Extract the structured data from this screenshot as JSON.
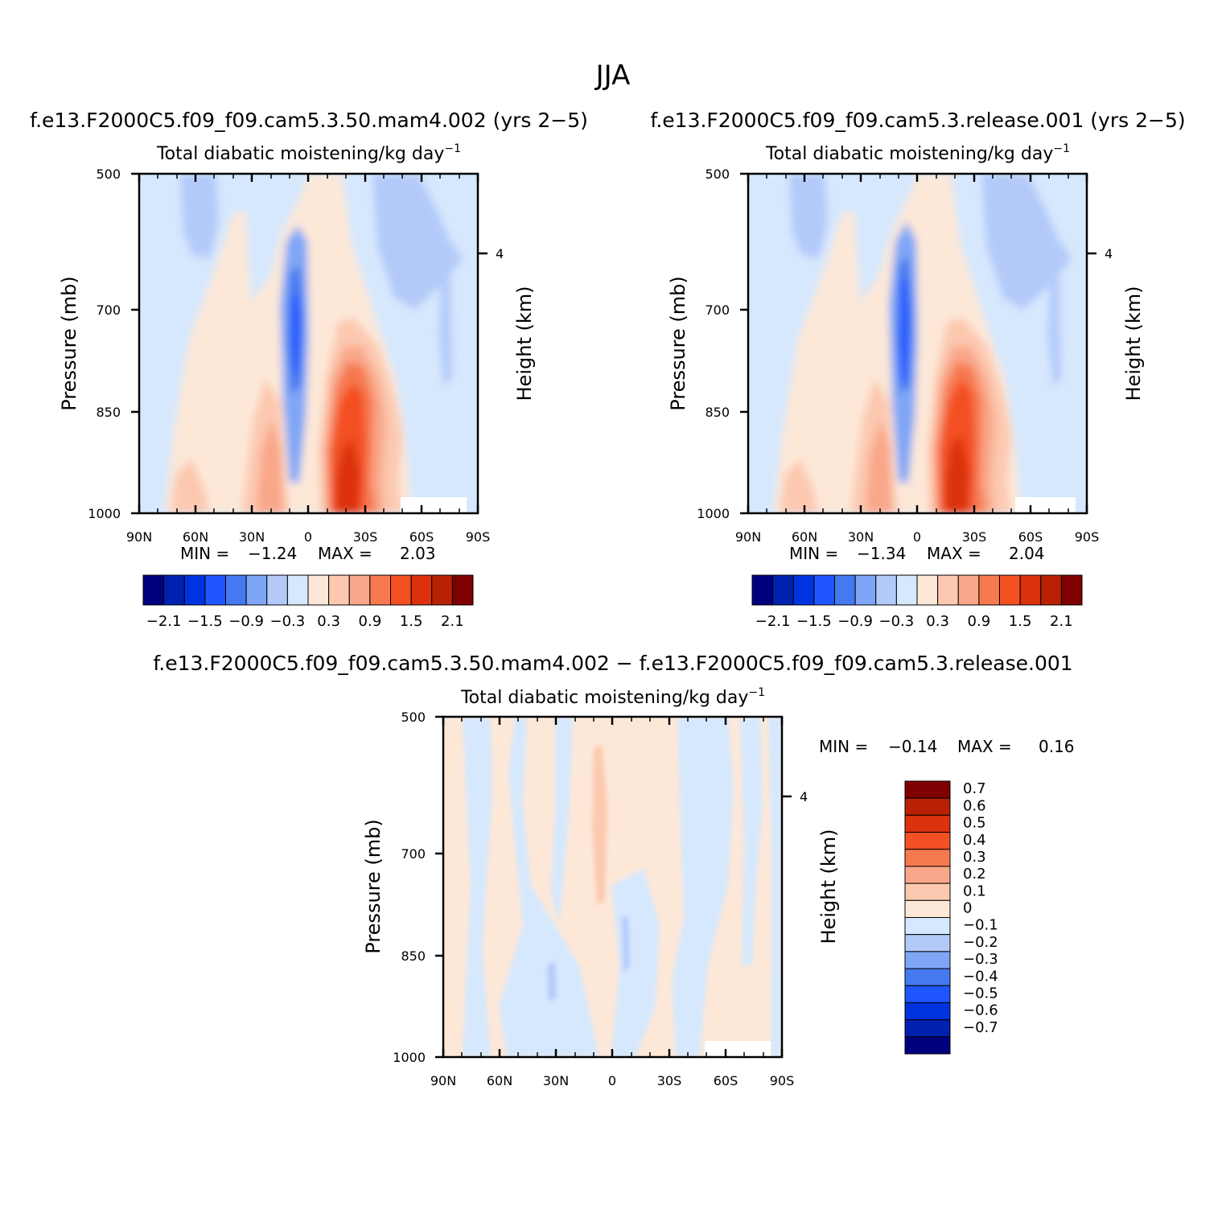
{
  "figure": {
    "title": "JJA",
    "colors": {
      "full_palette": [
        "#00007f",
        "#0021b0",
        "#0033e0",
        "#1e55ff",
        "#4479f0",
        "#7fa6f6",
        "#b3caf9",
        "#d6e8fd",
        "#fde8d8",
        "#fcc9b0",
        "#f9a78a",
        "#f7794f",
        "#f35024",
        "#db310c",
        "#b92104",
        "#7f0000"
      ],
      "diff_palette": [
        "#00007f",
        "#0021b0",
        "#0033e0",
        "#1e55ff",
        "#4479f0",
        "#7fa6f6",
        "#b3caf9",
        "#d6e8fd",
        "#fde8d8",
        "#fcc9b0",
        "#f9a78a",
        "#f7794f",
        "#f35024",
        "#db310c",
        "#b92104",
        "#7f0000"
      ]
    }
  },
  "chart_data": [
    {
      "id": "panel_mam4",
      "type": "heatmap",
      "plot_type": "filled contour (latitude-pressure)",
      "case_title": "f.e13.F2000C5.f09_f09.cam5.3.50.mam4.002 (yrs 2−5)",
      "title_main": "Total diabatic moistening/kg day",
      "title_sup": "−1",
      "xlabel": "",
      "ylabel": "Pressure (mb)",
      "y2label": "Height (km)",
      "xticks": [
        "90N",
        "60N",
        "30N",
        "0",
        "30S",
        "60S",
        "90S"
      ],
      "yticks": [
        "500",
        "700",
        "850",
        "1000"
      ],
      "y2ticks": [
        "4"
      ],
      "ylim": [
        1000,
        500
      ],
      "stats_min_label": "MIN =",
      "min": "−1.24",
      "stats_max_label": "MAX =",
      "max": "2.03",
      "levels": [
        -2.1,
        -1.8,
        -1.5,
        -1.2,
        -0.9,
        -0.6,
        -0.3,
        0,
        0.3,
        0.6,
        0.9,
        1.2,
        1.5,
        1.8,
        2.1
      ],
      "colorbar_labels": [
        "−2.1",
        "−1.5",
        "−0.9",
        "−0.3",
        "0.3",
        "0.9",
        "1.5",
        "2.1"
      ]
    },
    {
      "id": "panel_release",
      "type": "heatmap",
      "plot_type": "filled contour (latitude-pressure)",
      "case_title": "f.e13.F2000C5.f09_f09.cam5.3.release.001 (yrs 2−5)",
      "title_main": "Total diabatic moistening/kg day",
      "title_sup": "−1",
      "xlabel": "",
      "ylabel": "Pressure (mb)",
      "y2label": "Height (km)",
      "xticks": [
        "90N",
        "60N",
        "30N",
        "0",
        "30S",
        "60S",
        "90S"
      ],
      "yticks": [
        "500",
        "700",
        "850",
        "1000"
      ],
      "y2ticks": [
        "4"
      ],
      "ylim": [
        1000,
        500
      ],
      "stats_min_label": "MIN =",
      "min": "−1.34",
      "stats_max_label": "MAX =",
      "max": "2.04",
      "levels": [
        -2.1,
        -1.8,
        -1.5,
        -1.2,
        -0.9,
        -0.6,
        -0.3,
        0,
        0.3,
        0.6,
        0.9,
        1.2,
        1.5,
        1.8,
        2.1
      ],
      "colorbar_labels": [
        "−2.1",
        "−1.5",
        "−0.9",
        "−0.3",
        "0.3",
        "0.9",
        "1.5",
        "2.1"
      ]
    },
    {
      "id": "panel_diff",
      "type": "heatmap",
      "plot_type": "filled contour difference (latitude-pressure)",
      "case_title": "f.e13.F2000C5.f09_f09.cam5.3.50.mam4.002 − f.e13.F2000C5.f09_f09.cam5.3.release.001",
      "title_main": "Total diabatic moistening/kg day",
      "title_sup": "−1",
      "xlabel": "",
      "ylabel": "Pressure (mb)",
      "y2label": "Height (km)",
      "xticks": [
        "90N",
        "60N",
        "30N",
        "0",
        "30S",
        "60S",
        "90S"
      ],
      "yticks": [
        "500",
        "700",
        "850",
        "1000"
      ],
      "y2ticks": [
        "4"
      ],
      "ylim": [
        1000,
        500
      ],
      "stats_min_label": "MIN =",
      "min": "−0.14",
      "stats_max_label": "MAX =",
      "max": "0.16",
      "levels": [
        -0.7,
        -0.6,
        -0.5,
        -0.4,
        -0.3,
        -0.2,
        -0.1,
        0,
        0.1,
        0.2,
        0.3,
        0.4,
        0.5,
        0.6,
        0.7
      ],
      "colorbar_labels": [
        "0.7",
        "0.6",
        "0.5",
        "0.4",
        "0.3",
        "0.2",
        "0.1",
        "0",
        "−0.1",
        "−0.2",
        "−0.3",
        "−0.4",
        "−0.5",
        "−0.6",
        "−0.7"
      ]
    }
  ]
}
